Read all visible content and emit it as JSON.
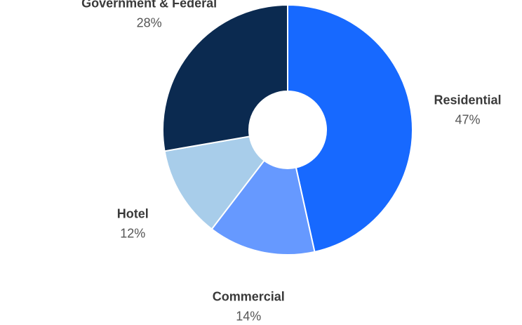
{
  "chart_data": {
    "type": "donut",
    "categories": [
      "Residential",
      "Commercial",
      "Hotel",
      "Government & Federal"
    ],
    "values": [
      47,
      14,
      12,
      28
    ],
    "value_labels": [
      "47%",
      "14%",
      "12%",
      "28%"
    ],
    "colors": [
      "#1769ff",
      "#6699ff",
      "#a8cdea",
      "#0b2a50"
    ]
  }
}
